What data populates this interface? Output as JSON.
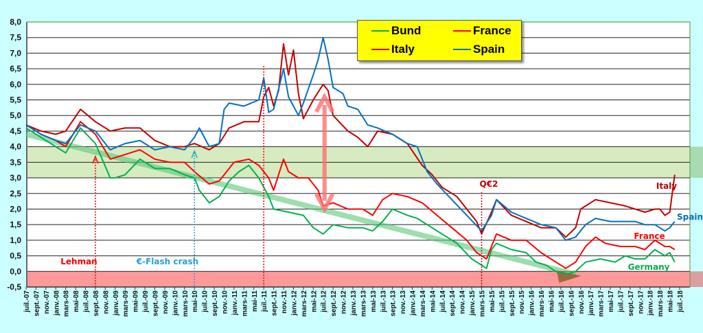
{
  "chart_data": {
    "type": "line",
    "title": "",
    "xlabel": "",
    "ylabel": "",
    "ylim": [
      -0.5,
      8.0
    ],
    "y_ticks": [
      "8,0",
      "7,5",
      "7,0",
      "6,5",
      "6,0",
      "5,5",
      "5,0",
      "4,5",
      "4,0",
      "3,5",
      "3,0",
      "2,5",
      "2,0",
      "1,5",
      "1,0",
      "0,5",
      "0,0",
      "-0,5"
    ],
    "x_ticks": [
      "juil.-07",
      "sept.-07",
      "nov.-07",
      "janv.-08",
      "mars-08",
      "mai-08",
      "juil.-08",
      "sept.-08",
      "nov.-08",
      "janv.-09",
      "mars-09",
      "mai-09",
      "juil.-09",
      "sept.-09",
      "nov.-09",
      "janv.-10",
      "mars-10",
      "mai-10",
      "juil.-10",
      "sept.-10",
      "nov.-10",
      "janv.-11",
      "mars-11",
      "mai-11",
      "juil.-11",
      "sept.-11",
      "nov.-11",
      "janv.-12",
      "mars-12",
      "mai-12",
      "juil.-12",
      "sept.-12",
      "nov.-12",
      "janv.-13",
      "mars-13",
      "mai-13",
      "juil.-13",
      "sept.-13",
      "nov.-13",
      "janv.-14",
      "mars-14",
      "mai-14",
      "juil.-14",
      "sept.-14",
      "nov.-14",
      "janv.-15",
      "mars-15",
      "mai-15",
      "juil.-15",
      "sept.-15",
      "nov.-15",
      "janv.-16",
      "mars-16",
      "mai-16",
      "juil.-16",
      "sept.-16",
      "nov.-16",
      "janv.-17",
      "mars-17",
      "mai-17",
      "juil.-17",
      "sept.-17",
      "nov.-17",
      "janv.-18",
      "mars-18",
      "mai-18",
      "juil.-18"
    ],
    "grid": true,
    "legend_position": "top-center",
    "series": [
      {
        "name": "Bund",
        "color": "#00b050",
        "points": [
          [
            "2007-07",
            4.6
          ],
          [
            "2007-10",
            4.3
          ],
          [
            "2008-01",
            4.0
          ],
          [
            "2008-03",
            3.8
          ],
          [
            "2008-06",
            4.6
          ],
          [
            "2008-09",
            4.1
          ],
          [
            "2008-12",
            3.0
          ],
          [
            "2009-01",
            3.0
          ],
          [
            "2009-03",
            3.1
          ],
          [
            "2009-06",
            3.6
          ],
          [
            "2009-09",
            3.3
          ],
          [
            "2009-12",
            3.3
          ],
          [
            "2010-03",
            3.1
          ],
          [
            "2010-05",
            3.0
          ],
          [
            "2010-06",
            2.6
          ],
          [
            "2010-08",
            2.2
          ],
          [
            "2010-10",
            2.4
          ],
          [
            "2010-12",
            2.9
          ],
          [
            "2011-02",
            3.2
          ],
          [
            "2011-04",
            3.4
          ],
          [
            "2011-06",
            3.0
          ],
          [
            "2011-08",
            2.4
          ],
          [
            "2011-09",
            2.0
          ],
          [
            "2011-12",
            1.9
          ],
          [
            "2012-03",
            1.8
          ],
          [
            "2012-05",
            1.4
          ],
          [
            "2012-07",
            1.2
          ],
          [
            "2012-09",
            1.5
          ],
          [
            "2012-12",
            1.4
          ],
          [
            "2013-03",
            1.4
          ],
          [
            "2013-05",
            1.3
          ],
          [
            "2013-07",
            1.6
          ],
          [
            "2013-09",
            2.0
          ],
          [
            "2013-12",
            1.8
          ],
          [
            "2014-02",
            1.7
          ],
          [
            "2014-04",
            1.5
          ],
          [
            "2014-07",
            1.2
          ],
          [
            "2014-10",
            0.9
          ],
          [
            "2015-01",
            0.4
          ],
          [
            "2015-04",
            0.1
          ],
          [
            "2015-05",
            0.7
          ],
          [
            "2015-06",
            0.9
          ],
          [
            "2015-09",
            0.7
          ],
          [
            "2015-12",
            0.6
          ],
          [
            "2016-02",
            0.3
          ],
          [
            "2016-04",
            0.2
          ],
          [
            "2016-06",
            0.0
          ],
          [
            "2016-08",
            -0.1
          ],
          [
            "2016-10",
            0.0
          ],
          [
            "2016-12",
            0.3
          ],
          [
            "2017-03",
            0.4
          ],
          [
            "2017-06",
            0.3
          ],
          [
            "2017-08",
            0.5
          ],
          [
            "2017-10",
            0.4
          ],
          [
            "2017-12",
            0.4
          ],
          [
            "2018-02",
            0.7
          ],
          [
            "2018-04",
            0.5
          ],
          [
            "2018-05",
            0.6
          ],
          [
            "2018-06",
            0.3
          ]
        ]
      },
      {
        "name": "France",
        "color": "#ff0000",
        "points": [
          [
            "2007-07",
            4.7
          ],
          [
            "2007-10",
            4.4
          ],
          [
            "2008-01",
            4.2
          ],
          [
            "2008-03",
            4.0
          ],
          [
            "2008-06",
            4.8
          ],
          [
            "2008-09",
            4.4
          ],
          [
            "2008-12",
            3.6
          ],
          [
            "2009-02",
            3.7
          ],
          [
            "2009-06",
            3.9
          ],
          [
            "2009-09",
            3.6
          ],
          [
            "2009-12",
            3.5
          ],
          [
            "2010-03",
            3.5
          ],
          [
            "2010-05",
            3.2
          ],
          [
            "2010-08",
            2.8
          ],
          [
            "2010-10",
            2.9
          ],
          [
            "2011-01",
            3.5
          ],
          [
            "2011-04",
            3.6
          ],
          [
            "2011-06",
            3.4
          ],
          [
            "2011-08",
            3.0
          ],
          [
            "2011-09",
            2.6
          ],
          [
            "2011-11",
            3.6
          ],
          [
            "2011-12",
            3.2
          ],
          [
            "2012-02",
            3.0
          ],
          [
            "2012-04",
            3.0
          ],
          [
            "2012-06",
            2.6
          ],
          [
            "2012-07",
            2.1
          ],
          [
            "2012-09",
            2.2
          ],
          [
            "2012-12",
            2.0
          ],
          [
            "2013-03",
            2.0
          ],
          [
            "2013-05",
            1.8
          ],
          [
            "2013-07",
            2.3
          ],
          [
            "2013-09",
            2.5
          ],
          [
            "2013-12",
            2.4
          ],
          [
            "2014-03",
            2.2
          ],
          [
            "2014-06",
            1.8
          ],
          [
            "2014-09",
            1.4
          ],
          [
            "2014-12",
            1.0
          ],
          [
            "2015-02",
            0.6
          ],
          [
            "2015-04",
            0.4
          ],
          [
            "2015-06",
            1.2
          ],
          [
            "2015-09",
            1.0
          ],
          [
            "2015-12",
            1.0
          ],
          [
            "2016-03",
            0.6
          ],
          [
            "2016-06",
            0.3
          ],
          [
            "2016-08",
            0.1
          ],
          [
            "2016-10",
            0.3
          ],
          [
            "2016-12",
            0.8
          ],
          [
            "2017-02",
            1.1
          ],
          [
            "2017-04",
            0.9
          ],
          [
            "2017-07",
            0.8
          ],
          [
            "2017-10",
            0.8
          ],
          [
            "2017-12",
            0.7
          ],
          [
            "2018-02",
            1.0
          ],
          [
            "2018-04",
            0.8
          ],
          [
            "2018-05",
            0.8
          ],
          [
            "2018-06",
            0.7
          ]
        ]
      },
      {
        "name": "Italy",
        "color": "#c00000",
        "points": [
          [
            "2007-07",
            4.7
          ],
          [
            "2007-10",
            4.5
          ],
          [
            "2008-01",
            4.4
          ],
          [
            "2008-03",
            4.5
          ],
          [
            "2008-06",
            5.2
          ],
          [
            "2008-09",
            4.8
          ],
          [
            "2008-12",
            4.5
          ],
          [
            "2009-03",
            4.6
          ],
          [
            "2009-06",
            4.6
          ],
          [
            "2009-09",
            4.2
          ],
          [
            "2009-12",
            4.0
          ],
          [
            "2010-03",
            4.0
          ],
          [
            "2010-05",
            4.1
          ],
          [
            "2010-08",
            3.9
          ],
          [
            "2010-10",
            4.1
          ],
          [
            "2010-12",
            4.6
          ],
          [
            "2011-03",
            4.8
          ],
          [
            "2011-06",
            4.8
          ],
          [
            "2011-07",
            5.6
          ],
          [
            "2011-08",
            5.9
          ],
          [
            "2011-09",
            5.3
          ],
          [
            "2011-10",
            5.8
          ],
          [
            "2011-11",
            7.3
          ],
          [
            "2011-12",
            6.3
          ],
          [
            "2012-01",
            7.1
          ],
          [
            "2012-02",
            5.7
          ],
          [
            "2012-03",
            4.9
          ],
          [
            "2012-05",
            5.5
          ],
          [
            "2012-07",
            6.0
          ],
          [
            "2012-08",
            5.8
          ],
          [
            "2012-09",
            5.0
          ],
          [
            "2012-12",
            4.5
          ],
          [
            "2013-02",
            4.3
          ],
          [
            "2013-04",
            4.0
          ],
          [
            "2013-06",
            4.5
          ],
          [
            "2013-09",
            4.4
          ],
          [
            "2013-12",
            4.1
          ],
          [
            "2014-03",
            3.4
          ],
          [
            "2014-05",
            3.1
          ],
          [
            "2014-07",
            2.7
          ],
          [
            "2014-10",
            2.4
          ],
          [
            "2014-12",
            2.0
          ],
          [
            "2015-02",
            1.6
          ],
          [
            "2015-03",
            1.2
          ],
          [
            "2015-05",
            1.9
          ],
          [
            "2015-06",
            2.3
          ],
          [
            "2015-09",
            1.8
          ],
          [
            "2015-12",
            1.6
          ],
          [
            "2016-03",
            1.4
          ],
          [
            "2016-06",
            1.4
          ],
          [
            "2016-08",
            1.1
          ],
          [
            "2016-10",
            1.4
          ],
          [
            "2016-11",
            2.0
          ],
          [
            "2017-02",
            2.3
          ],
          [
            "2017-05",
            2.2
          ],
          [
            "2017-08",
            2.1
          ],
          [
            "2017-10",
            2.0
          ],
          [
            "2017-12",
            1.9
          ],
          [
            "2018-02",
            2.0
          ],
          [
            "2018-03",
            2.0
          ],
          [
            "2018-04",
            1.8
          ],
          [
            "2018-05",
            1.9
          ],
          [
            "2018-06",
            3.1
          ]
        ]
      },
      {
        "name": "Spain",
        "color": "#0070c0",
        "points": [
          [
            "2007-07",
            4.7
          ],
          [
            "2007-10",
            4.4
          ],
          [
            "2008-01",
            4.2
          ],
          [
            "2008-03",
            4.1
          ],
          [
            "2008-06",
            4.7
          ],
          [
            "2008-09",
            4.5
          ],
          [
            "2008-12",
            3.9
          ],
          [
            "2009-03",
            4.1
          ],
          [
            "2009-06",
            4.2
          ],
          [
            "2009-09",
            3.9
          ],
          [
            "2009-12",
            4.0
          ],
          [
            "2010-03",
            3.9
          ],
          [
            "2010-05",
            4.3
          ],
          [
            "2010-06",
            4.6
          ],
          [
            "2010-08",
            4.0
          ],
          [
            "2010-10",
            4.1
          ],
          [
            "2010-11",
            5.2
          ],
          [
            "2010-12",
            5.4
          ],
          [
            "2011-03",
            5.3
          ],
          [
            "2011-06",
            5.5
          ],
          [
            "2011-07",
            6.2
          ],
          [
            "2011-08",
            5.1
          ],
          [
            "2011-09",
            5.2
          ],
          [
            "2011-11",
            6.5
          ],
          [
            "2011-12",
            5.6
          ],
          [
            "2012-01",
            5.3
          ],
          [
            "2012-02",
            5.0
          ],
          [
            "2012-03",
            5.4
          ],
          [
            "2012-05",
            6.3
          ],
          [
            "2012-06",
            6.8
          ],
          [
            "2012-07",
            7.5
          ],
          [
            "2012-08",
            6.8
          ],
          [
            "2012-09",
            5.9
          ],
          [
            "2012-11",
            5.7
          ],
          [
            "2012-12",
            5.3
          ],
          [
            "2013-02",
            5.2
          ],
          [
            "2013-04",
            4.7
          ],
          [
            "2013-06",
            4.6
          ],
          [
            "2013-09",
            4.4
          ],
          [
            "2013-12",
            4.1
          ],
          [
            "2014-02",
            4.0
          ],
          [
            "2014-04",
            3.2
          ],
          [
            "2014-06",
            2.8
          ],
          [
            "2014-09",
            2.3
          ],
          [
            "2014-12",
            1.8
          ],
          [
            "2015-03",
            1.3
          ],
          [
            "2015-05",
            1.8
          ],
          [
            "2015-06",
            2.3
          ],
          [
            "2015-09",
            1.9
          ],
          [
            "2015-12",
            1.7
          ],
          [
            "2016-03",
            1.5
          ],
          [
            "2016-06",
            1.4
          ],
          [
            "2016-08",
            1.0
          ],
          [
            "2016-10",
            1.1
          ],
          [
            "2016-12",
            1.5
          ],
          [
            "2017-02",
            1.7
          ],
          [
            "2017-05",
            1.6
          ],
          [
            "2017-08",
            1.6
          ],
          [
            "2017-10",
            1.6
          ],
          [
            "2017-12",
            1.5
          ],
          [
            "2018-02",
            1.5
          ],
          [
            "2018-04",
            1.3
          ],
          [
            "2018-05",
            1.4
          ],
          [
            "2018-06",
            1.6
          ]
        ]
      }
    ],
    "bands": [
      {
        "name": "green-zone",
        "from": 3.0,
        "to": 4.0,
        "color": "#d6ebc0"
      },
      {
        "name": "negative-zone",
        "from": -0.5,
        "to": 0.0,
        "color": "#ff9999"
      }
    ],
    "events": [
      {
        "label": "Lehman",
        "date": "2008-09",
        "color": "#ff0000"
      },
      {
        "label": "€-Flash crash",
        "date": "2010-05",
        "color": "#2a9fd6"
      },
      {
        "label": "",
        "date": "2011-07",
        "color": "#ff0000"
      },
      {
        "label": "Q€2",
        "date": "2015-03",
        "color": "#c00000"
      }
    ],
    "trend": {
      "from": [
        "2007-07",
        4.4
      ],
      "to": [
        "2016-10",
        -0.1
      ]
    },
    "spread_arrow": {
      "date": "2012-07",
      "from": 2.0,
      "to": 5.6
    },
    "end_labels": [
      {
        "label": "Italy",
        "color": "#c00000"
      },
      {
        "label": "Spain",
        "color": "#0070c0"
      },
      {
        "label": "France",
        "color": "#ff0000"
      },
      {
        "label": "Germany",
        "color": "#00b050"
      }
    ]
  }
}
